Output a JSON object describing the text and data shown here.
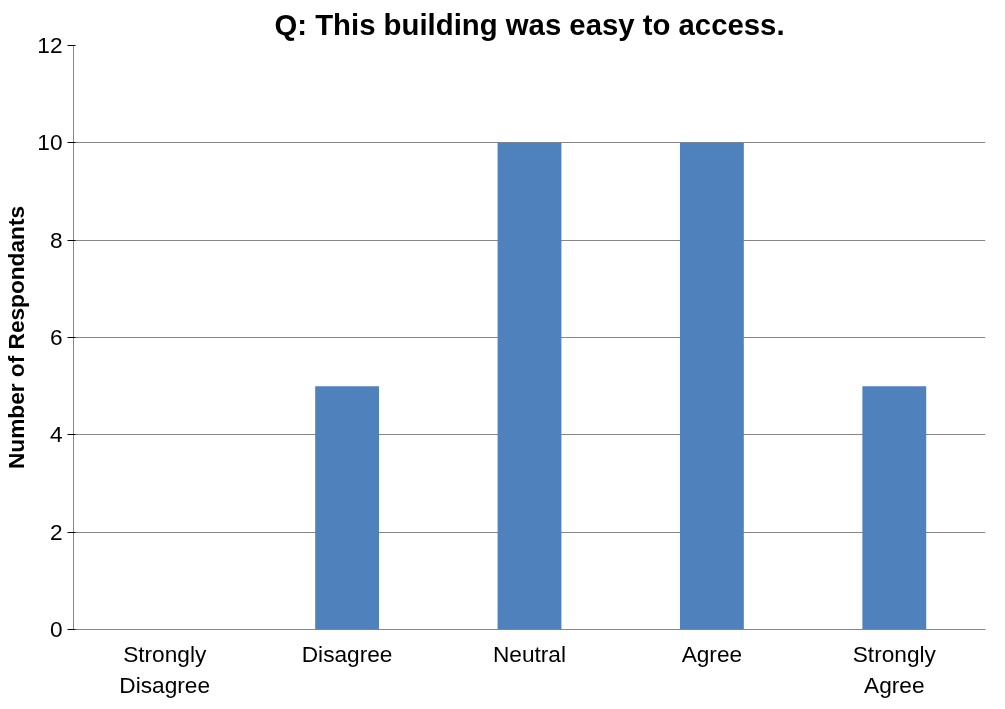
{
  "chart_data": {
    "type": "bar",
    "title": "Q: This building was easy to access.",
    "ylabel": "Number of Respondants",
    "categories": [
      "Strongly Disagree",
      "Disagree",
      "Neutral",
      "Agree",
      "Strongly Agree"
    ],
    "values": [
      0,
      5,
      10,
      10,
      5
    ],
    "color": "#4f81bd",
    "ylim": [
      0,
      12
    ],
    "yticks": [
      0,
      2,
      4,
      6,
      8,
      10,
      12
    ],
    "grid": "y"
  }
}
